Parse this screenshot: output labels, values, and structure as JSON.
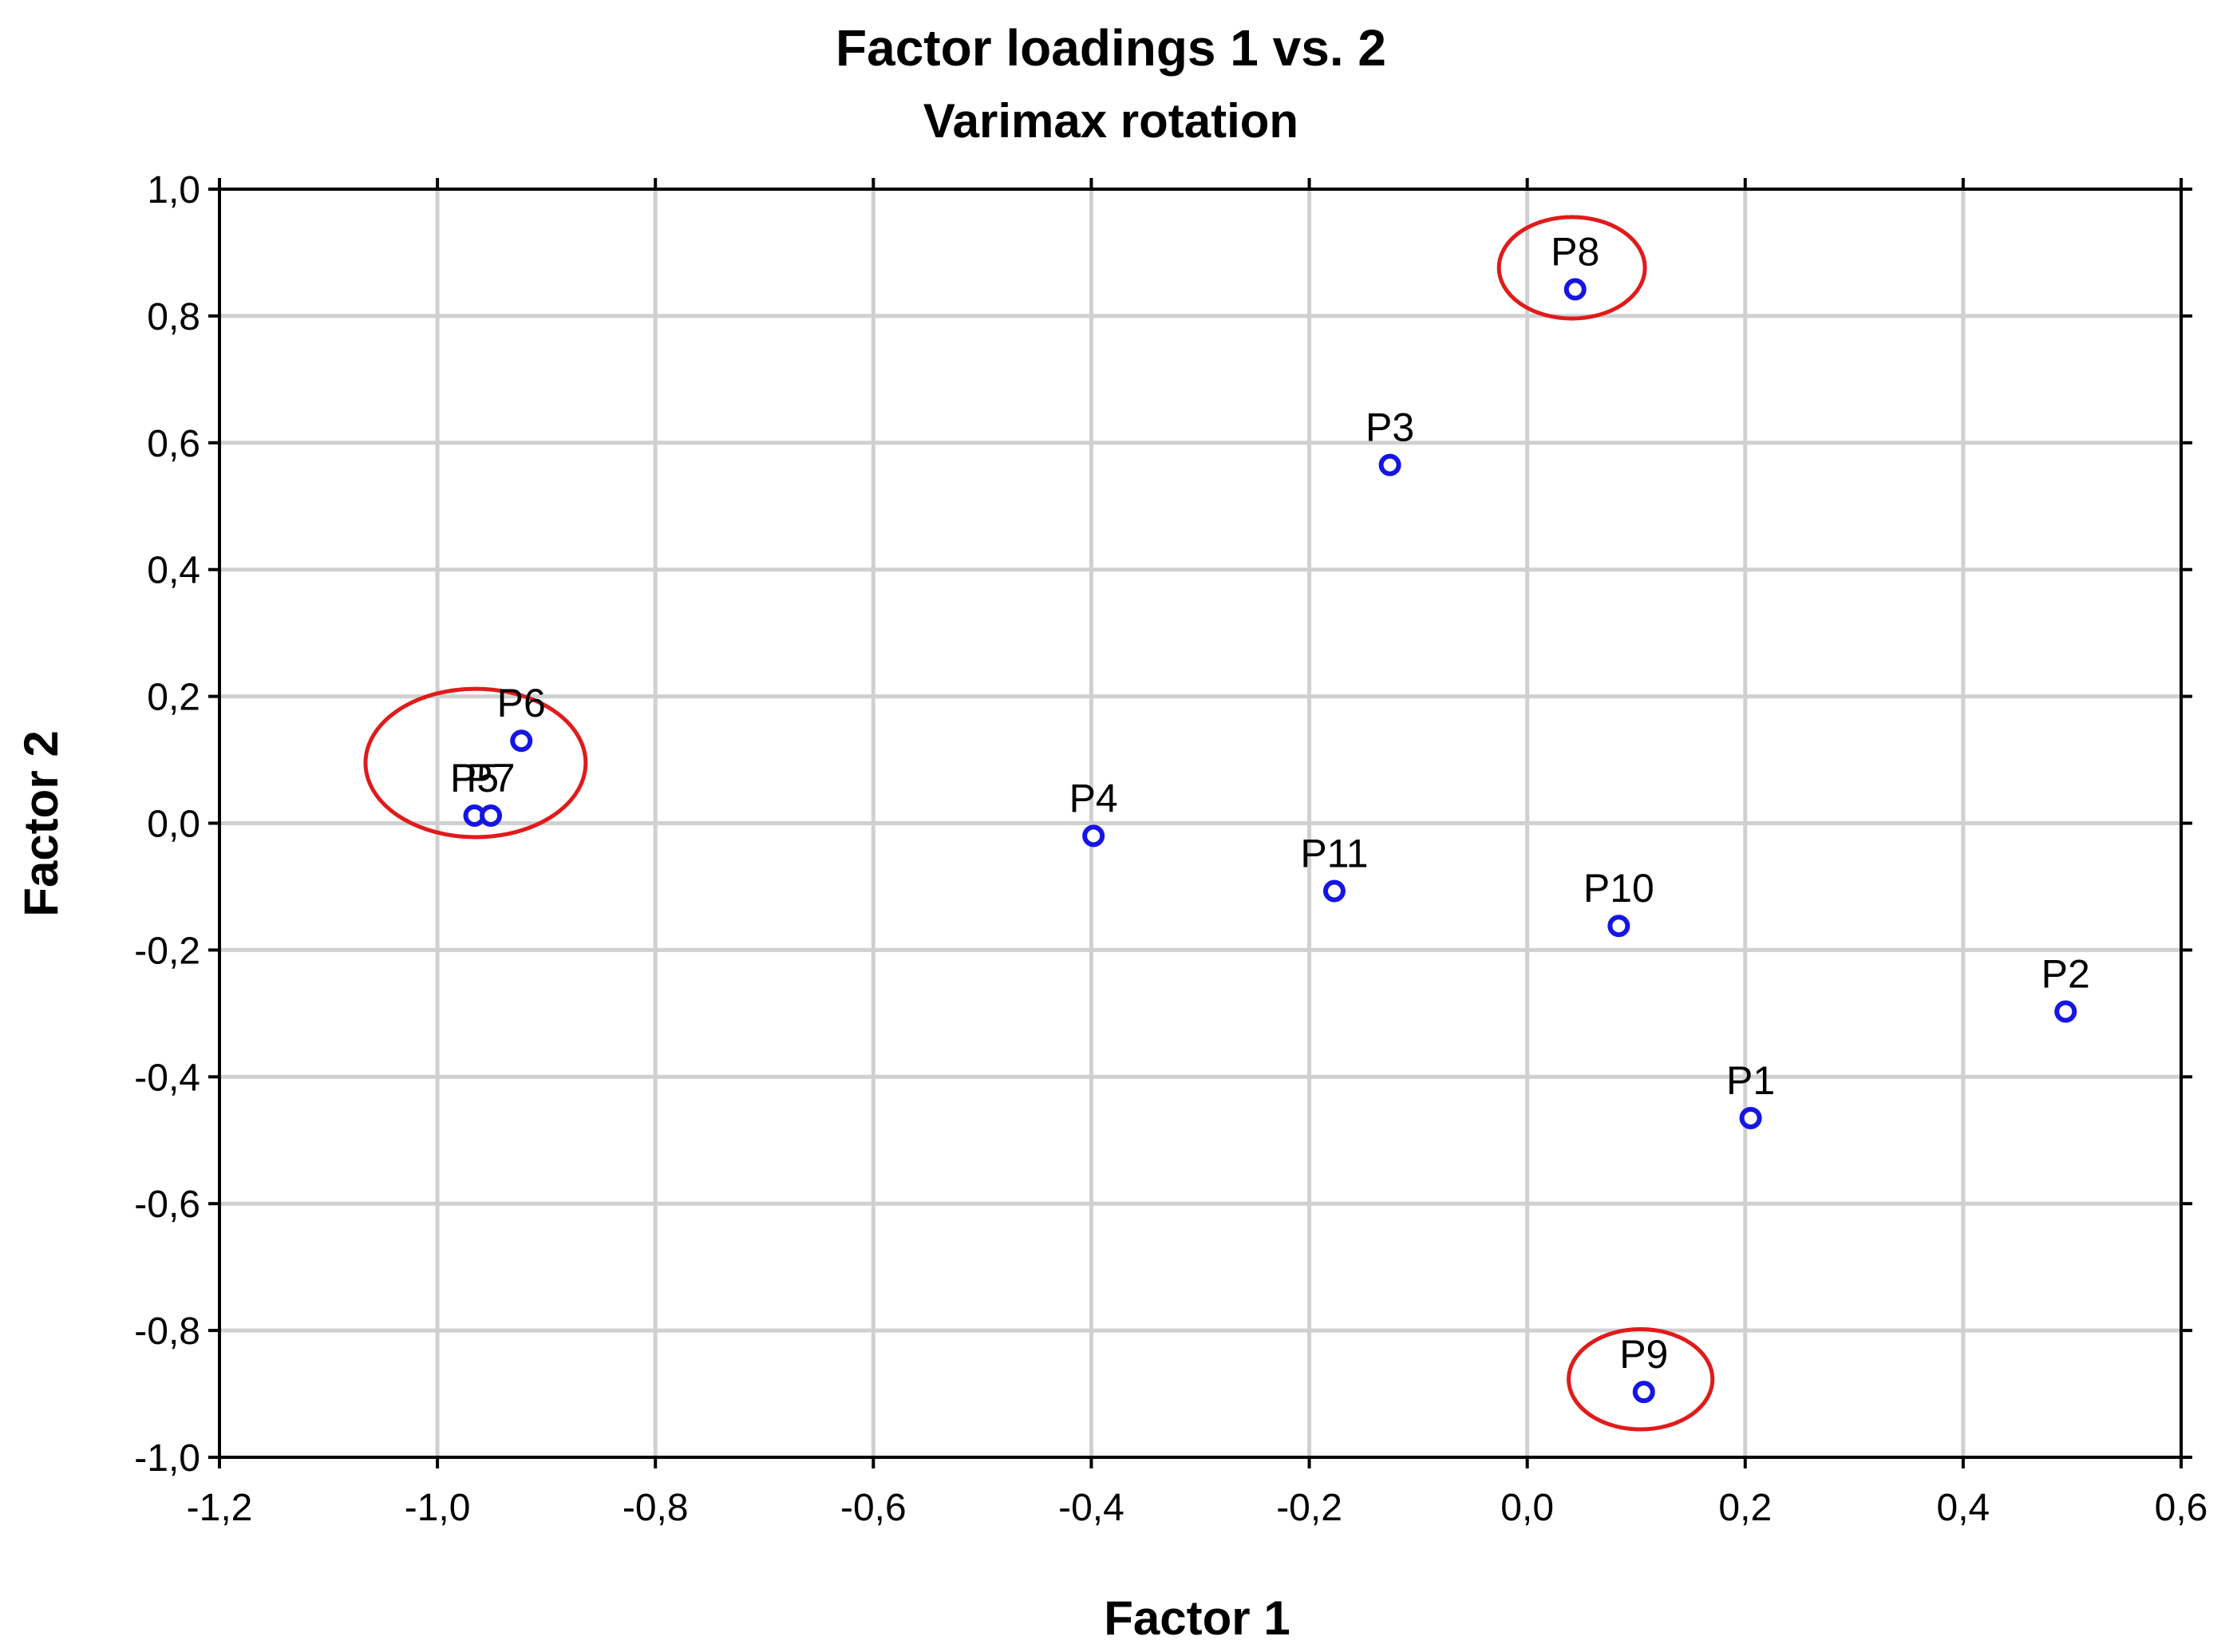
{
  "chart_data": {
    "type": "scatter",
    "title": "Factor loadings 1 vs. 2",
    "subtitle": "Varimax rotation",
    "xlabel": "Factor 1",
    "ylabel": "Factor 2",
    "xlim": [
      -1.2,
      0.6
    ],
    "ylim": [
      -1.0,
      1.0
    ],
    "x_ticks": [
      -1.2,
      -1.0,
      -0.8,
      -0.6,
      -0.4,
      -0.2,
      0.0,
      0.2,
      0.4,
      0.6
    ],
    "x_tick_labels": [
      "-1,2",
      "-1,0",
      "-0,8",
      "-0,6",
      "-0,4",
      "-0,2",
      "0,0",
      "0,2",
      "0,4",
      "0,6"
    ],
    "y_ticks": [
      1.0,
      0.8,
      0.6,
      0.4,
      0.2,
      0.0,
      -0.2,
      -0.4,
      -0.6,
      -0.8,
      -1.0
    ],
    "y_tick_labels": [
      "1,0",
      "0,8",
      "0,6",
      "0,4",
      "0,2",
      "0,0",
      "-0,2",
      "-0,4",
      "-0,6",
      "-0,8",
      "-1,0"
    ],
    "grid": true,
    "points": [
      {
        "label": "P1",
        "x": 0.205,
        "y": -0.465
      },
      {
        "label": "P2",
        "x": 0.494,
        "y": -0.297
      },
      {
        "label": "P3",
        "x": -0.126,
        "y": 0.565
      },
      {
        "label": "P4",
        "x": -0.398,
        "y": -0.02
      },
      {
        "label": "P5",
        "x": -0.966,
        "y": 0.012
      },
      {
        "label": "P6",
        "x": -0.923,
        "y": 0.13
      },
      {
        "label": "P7",
        "x": -0.951,
        "y": 0.012
      },
      {
        "label": "P8",
        "x": 0.044,
        "y": 0.842
      },
      {
        "label": "P9",
        "x": 0.107,
        "y": -0.897
      },
      {
        "label": "P10",
        "x": 0.084,
        "y": -0.162
      },
      {
        "label": "P11",
        "x": -0.177,
        "y": -0.107
      }
    ],
    "highlight_groups": [
      {
        "members": [
          "P5",
          "P6",
          "P7"
        ],
        "cx": -0.965,
        "cy": 0.095,
        "rx": 0.101,
        "ry": 0.117
      },
      {
        "members": [
          "P8"
        ],
        "cx": 0.041,
        "cy": 0.876,
        "rx": 0.067,
        "ry": 0.08
      },
      {
        "members": [
          "P9"
        ],
        "cx": 0.104,
        "cy": -0.877,
        "rx": 0.066,
        "ry": 0.079
      }
    ],
    "colors": {
      "marker": "#1515e6",
      "highlight": "#e01b1b",
      "grid": "#d0d0d0"
    }
  }
}
